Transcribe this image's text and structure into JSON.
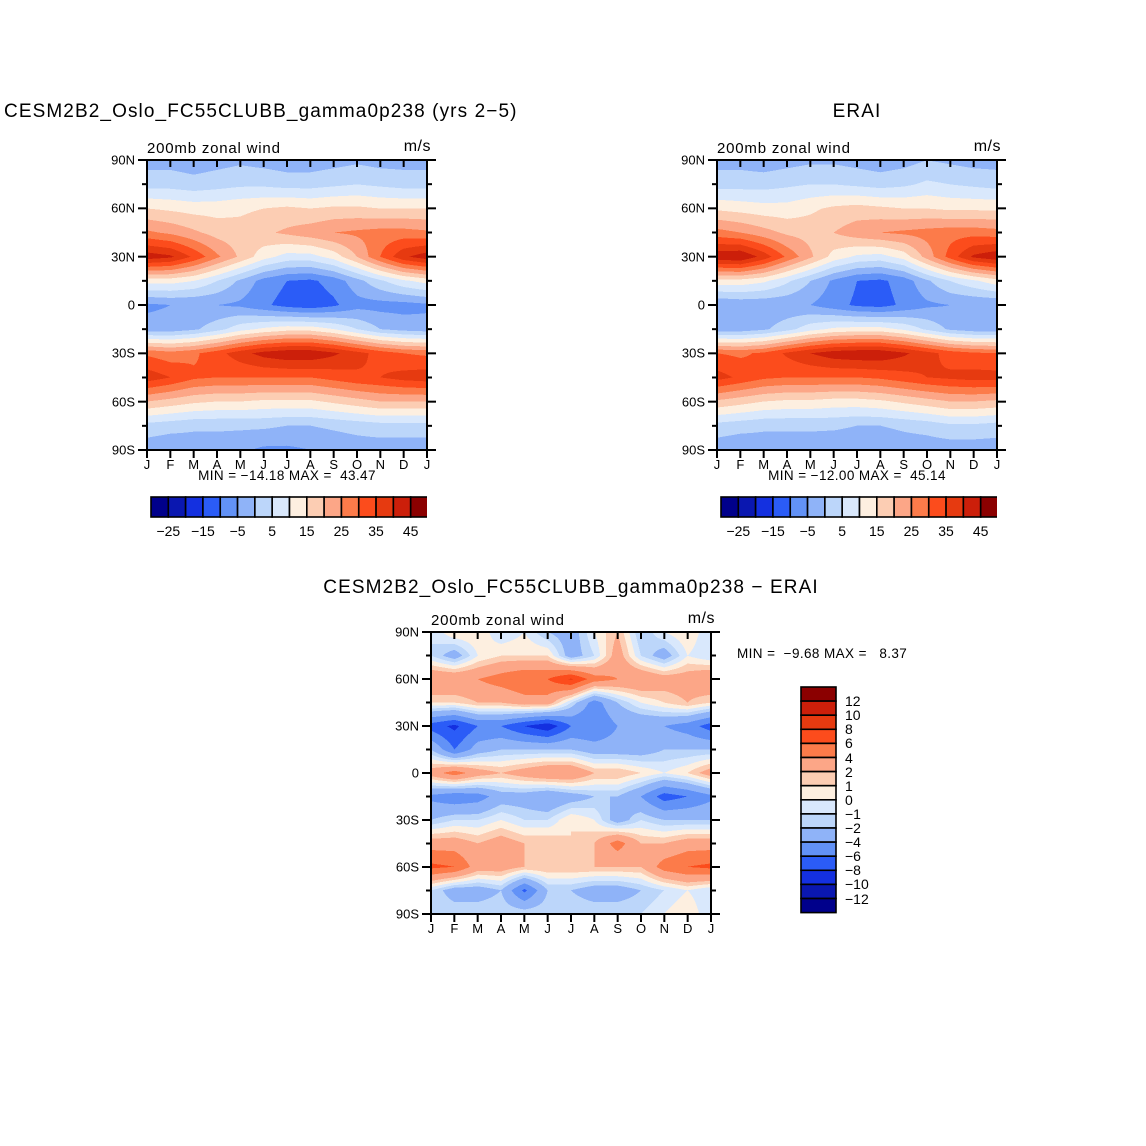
{
  "palette": [
    "#00008B",
    "#0A17B0",
    "#1430E0",
    "#2B5CF7",
    "#6292F7",
    "#8FB3F8",
    "#BCD6FA",
    "#D9E8FC",
    "#FDEFE0",
    "#FCCDB3",
    "#FCA687",
    "#FC7B4A",
    "#FC4C1C",
    "#E63A10",
    "#CC1F0A",
    "#8B0000"
  ],
  "chart_data": [
    {
      "type": "filled-contour",
      "title": "CESM2B2_Oslo_FC55CLUBB_gamma0p238 (yrs 2−5)",
      "plot_label": "200mb zonal wind",
      "units": "m/s",
      "stats": "MIN = −14.18 MAX =  43.47",
      "x_tick_labels": [
        "J",
        "F",
        "M",
        "A",
        "M",
        "J",
        "J",
        "A",
        "S",
        "O",
        "N",
        "D",
        "J"
      ],
      "y_tick_labels": [
        "90N",
        "60N",
        "30N",
        "0",
        "30S",
        "60S",
        "90S"
      ],
      "lat_rows": [
        "90N",
        "75N",
        "60N",
        "45N",
        "30N",
        "15N",
        "0",
        "15S",
        "30S",
        "45S",
        "60S",
        "75S",
        "90S"
      ],
      "levels": [
        -25,
        -20,
        -15,
        -10,
        -5,
        0,
        5,
        10,
        15,
        20,
        25,
        30,
        35,
        40,
        45
      ],
      "colorbar": "horizontal",
      "colorbar_tick_labels": [
        "−25",
        "−15",
        "−5",
        "5",
        "15",
        "25",
        "35",
        "45"
      ],
      "values": [
        [
          -2,
          -2,
          -3,
          -2,
          -1,
          -2,
          -3,
          -3,
          -2,
          -1,
          -2,
          -2,
          -2
        ],
        [
          3,
          3,
          2,
          3,
          4,
          4,
          3,
          3,
          4,
          5,
          4,
          3,
          3
        ],
        [
          15,
          14,
          13,
          13,
          14,
          15,
          16,
          15,
          16,
          16,
          15,
          15,
          15
        ],
        [
          26,
          24,
          21,
          18,
          17,
          19,
          21,
          23,
          25,
          26,
          27,
          27,
          26
        ],
        [
          43,
          41,
          34,
          26,
          19,
          12,
          8,
          8,
          12,
          20,
          30,
          39,
          43
        ],
        [
          12,
          12,
          10,
          5,
          -1,
          -7,
          -10,
          -11,
          -8,
          -2,
          4,
          9,
          12
        ],
        [
          -6,
          -5,
          -5,
          -5,
          -6,
          -9,
          -12,
          -13.5,
          -11,
          -7,
          -7,
          -7,
          -6
        ],
        [
          -3,
          -3,
          -1,
          3,
          8,
          11,
          13,
          13,
          10,
          5,
          0,
          -2,
          -3
        ],
        [
          29,
          27,
          29,
          33,
          38,
          42,
          44,
          44,
          41,
          37,
          33,
          30,
          29
        ],
        [
          38,
          35,
          31,
          30,
          30,
          30,
          30,
          30,
          32,
          34,
          35,
          37,
          38
        ],
        [
          20,
          18,
          16,
          15,
          15,
          14,
          14,
          14,
          16,
          18,
          20,
          20,
          20
        ],
        [
          3,
          2,
          1,
          1,
          1,
          1,
          0,
          0,
          1,
          2,
          3,
          3,
          3
        ],
        [
          -3,
          -4,
          -3,
          -3,
          -4,
          -6,
          -6,
          -5,
          -4,
          -3,
          -3,
          -3,
          -3
        ]
      ]
    },
    {
      "type": "filled-contour",
      "title": "ERAI",
      "plot_label": "200mb zonal wind",
      "units": "m/s",
      "stats": "MIN = −12.00 MAX =  45.14",
      "x_tick_labels": [
        "J",
        "F",
        "M",
        "A",
        "M",
        "J",
        "J",
        "A",
        "S",
        "O",
        "N",
        "D",
        "J"
      ],
      "y_tick_labels": [
        "90N",
        "60N",
        "30N",
        "0",
        "30S",
        "60S",
        "90S"
      ],
      "lat_rows": [
        "90N",
        "75N",
        "60N",
        "45N",
        "30N",
        "15N",
        "0",
        "15S",
        "30S",
        "45S",
        "60S",
        "75S",
        "90S"
      ],
      "levels": [
        -25,
        -20,
        -15,
        -10,
        -5,
        0,
        5,
        10,
        15,
        20,
        25,
        30,
        35,
        40,
        45
      ],
      "colorbar": "horizontal",
      "colorbar_tick_labels": [
        "−25",
        "−15",
        "−5",
        "5",
        "15",
        "25",
        "35",
        "45"
      ],
      "values": [
        [
          -2,
          -2,
          -3,
          -2,
          -1,
          -1,
          -2,
          -3,
          -2,
          0,
          -1,
          -2,
          -2
        ],
        [
          3,
          3,
          3,
          4,
          5,
          5,
          4,
          3,
          4,
          6,
          5,
          4,
          3
        ],
        [
          14,
          13,
          12,
          12,
          14,
          16,
          17,
          16,
          15,
          15,
          14,
          14,
          14
        ],
        [
          27,
          25,
          22,
          19,
          18,
          20,
          23,
          25,
          26,
          27,
          28,
          28,
          27
        ],
        [
          44,
          45,
          38,
          29,
          21,
          13,
          9,
          8,
          12,
          22,
          32,
          41,
          44
        ],
        [
          13,
          13,
          11,
          6,
          0,
          -6,
          -10,
          -11,
          -8,
          -1,
          5,
          9,
          13
        ],
        [
          -5,
          -4,
          -4,
          -4,
          -5,
          -8,
          -11,
          -12,
          -9,
          -6,
          -5,
          -5,
          -5
        ],
        [
          -3,
          -3,
          -1,
          3,
          8,
          11,
          12,
          12,
          9,
          4,
          -1,
          -3,
          -3
        ],
        [
          30,
          29,
          31,
          36,
          40,
          43,
          44,
          44,
          41,
          37,
          33,
          31,
          30
        ],
        [
          37,
          34,
          31,
          30,
          30,
          30,
          30,
          31,
          33,
          35,
          36,
          37,
          37
        ],
        [
          19,
          17,
          15,
          14,
          14,
          13,
          13,
          14,
          16,
          18,
          20,
          20,
          19
        ],
        [
          3,
          2,
          1,
          1,
          1,
          1,
          0,
          0,
          1,
          2,
          4,
          4,
          3
        ],
        [
          -3,
          -4,
          -3,
          -3,
          -3,
          -4,
          -4,
          -4,
          -3,
          -3,
          -3,
          -3,
          -3
        ]
      ]
    },
    {
      "type": "filled-contour",
      "title": "CESM2B2_Oslo_FC55CLUBB_gamma0p238 − ERAI",
      "plot_label": "200mb zonal wind",
      "units": "m/s",
      "stats": "MIN =  −9.68 MAX =   8.37",
      "x_tick_labels": [
        "J",
        "F",
        "M",
        "A",
        "M",
        "J",
        "J",
        "A",
        "S",
        "O",
        "N",
        "D",
        "J"
      ],
      "y_tick_labels": [
        "90N",
        "60N",
        "30N",
        "0",
        "30S",
        "60S",
        "90S"
      ],
      "lat_rows": [
        "90N",
        "75N",
        "60N",
        "45N",
        "30N",
        "15N",
        "0",
        "15S",
        "30S",
        "45S",
        "60S",
        "75S",
        "90S"
      ],
      "levels": [
        -12,
        -10,
        -8,
        -6,
        -4,
        -2,
        -1,
        0,
        1,
        2,
        4,
        6,
        8,
        10,
        12
      ],
      "colorbar": "vertical",
      "colorbar_tick_labels": [
        "12",
        "10",
        "8",
        "6",
        "4",
        "2",
        "1",
        "0",
        "−1",
        "−2",
        "−4",
        "−6",
        "−8",
        "−10",
        "−12"
      ],
      "values": [
        [
          -1,
          1,
          1,
          -1,
          0,
          -2,
          -3,
          0,
          2,
          -2,
          0,
          1,
          -1
        ],
        [
          -1,
          -3,
          0,
          1,
          1,
          1,
          -3,
          -1,
          3,
          -1,
          -3,
          0,
          -1
        ],
        [
          4,
          4,
          4,
          5,
          6,
          6,
          8.3,
          5,
          4,
          4,
          3,
          3,
          4
        ],
        [
          1,
          1,
          2,
          2,
          3,
          3,
          -1,
          -5,
          -2,
          0,
          1,
          2,
          1
        ],
        [
          -7,
          -8.5,
          -6,
          -6,
          -8,
          -9.5,
          -6,
          -6,
          -4,
          -4,
          -4,
          -5,
          -7
        ],
        [
          -2,
          -6,
          -3,
          -2,
          -2,
          -2,
          -2,
          -3,
          -3,
          -3,
          -2,
          -2,
          -2
        ],
        [
          3,
          5,
          3,
          2,
          3,
          4,
          4,
          2,
          2,
          1,
          0,
          1,
          3
        ],
        [
          -4.5,
          -5.5,
          -5,
          -3,
          -3,
          -4,
          -3,
          -2,
          -2,
          -4,
          -7,
          -6,
          -4.5
        ],
        [
          -2,
          -1,
          -1,
          0,
          -1,
          -1,
          1,
          0,
          -3,
          -1,
          -2,
          -2,
          -2
        ],
        [
          3,
          3,
          2,
          3,
          2,
          2,
          1,
          2,
          5,
          2,
          2,
          3,
          3
        ],
        [
          6.5,
          6,
          3,
          3,
          2,
          2,
          2,
          2,
          2,
          2,
          5,
          6,
          6.5
        ],
        [
          -1,
          -3,
          -3,
          -2,
          -6.5,
          -2,
          -2,
          -3,
          -3,
          -2,
          -1,
          0,
          -1
        ],
        [
          -1,
          -1,
          -1,
          -1,
          -1,
          -1,
          -1,
          -1,
          -1,
          -1,
          0,
          1,
          -1
        ]
      ]
    }
  ]
}
